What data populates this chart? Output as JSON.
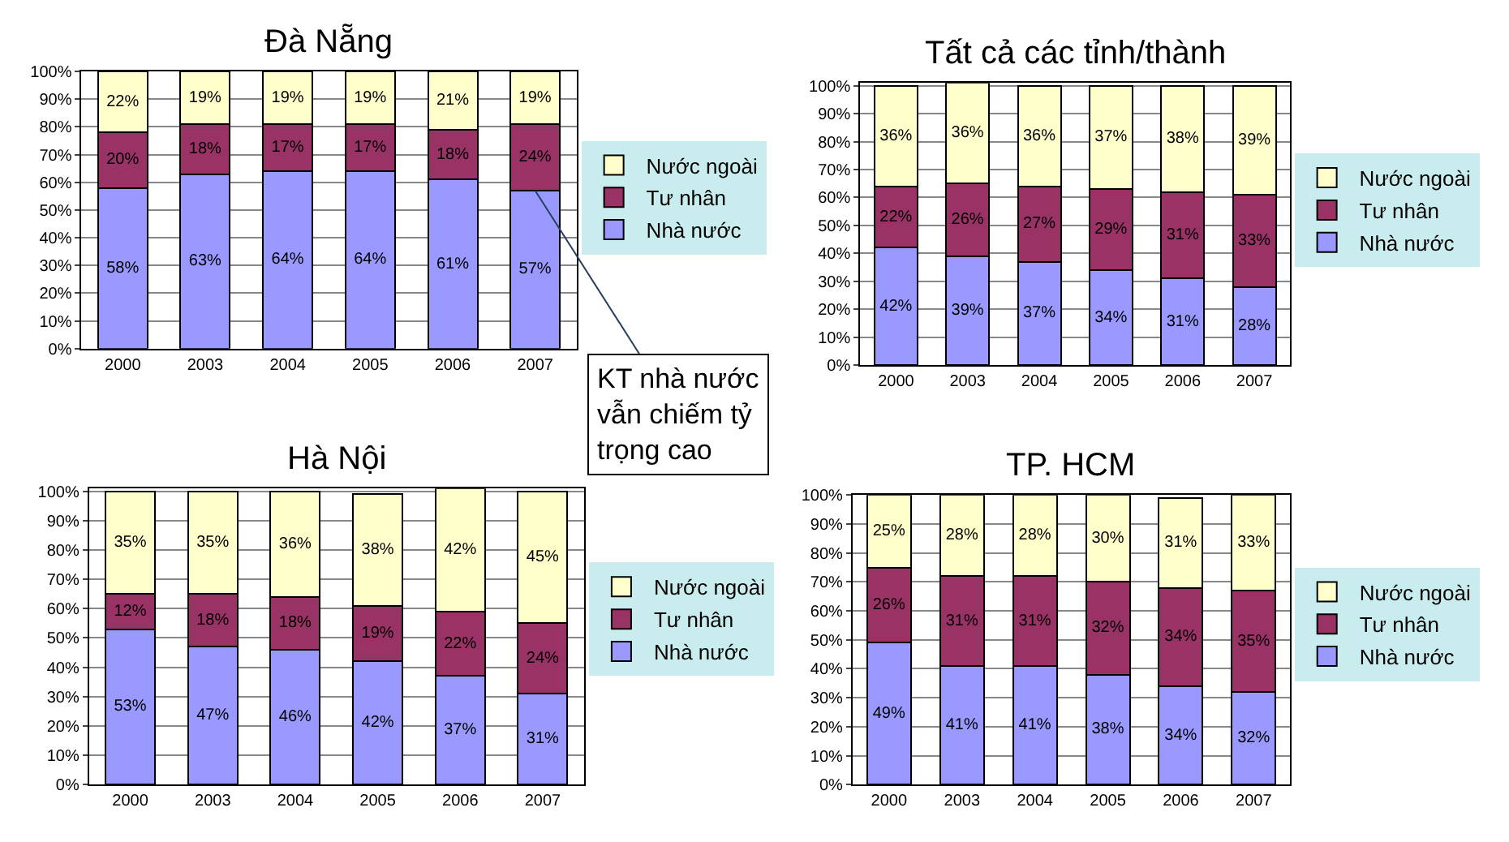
{
  "chart_data": [
    {
      "type": "bar",
      "title": "Đà Nẵng",
      "categories": [
        "2000",
        "2003",
        "2004",
        "2005",
        "2006",
        "2007"
      ],
      "stacked": true,
      "ylim": [
        0,
        100
      ],
      "yticks": [
        {
          "value": 0,
          "label": "0%"
        },
        {
          "value": 10,
          "label": "10%"
        },
        {
          "value": 20,
          "label": "20%"
        },
        {
          "value": 30,
          "label": "30%"
        },
        {
          "value": 40,
          "label": "40%"
        },
        {
          "value": 50,
          "label": "50%"
        },
        {
          "value": 60,
          "label": "60%"
        },
        {
          "value": 70,
          "label": "70%"
        },
        {
          "value": 80,
          "label": "80%"
        },
        {
          "value": 90,
          "label": "90%"
        },
        {
          "value": 100,
          "label": "100%"
        }
      ],
      "grid": "y",
      "legend": "right",
      "series": [
        {
          "name": "Nhà nước",
          "color": "#9999ff",
          "values": [
            58,
            63,
            64,
            64,
            61,
            57
          ],
          "value_labels": [
            "58%",
            "63%",
            "64%",
            "64%",
            "61%",
            "57%"
          ]
        },
        {
          "name": "Tư nhân",
          "color": "#993366",
          "values": [
            20,
            18,
            17,
            17,
            18,
            24
          ],
          "value_labels": [
            "20%",
            "18%",
            "17%",
            "17%",
            "18%",
            "24%"
          ]
        },
        {
          "name": "Nước ngoài",
          "color": "#ffffcc",
          "values": [
            22,
            19,
            19,
            19,
            21,
            19
          ],
          "value_labels": [
            "22%",
            "19%",
            "19%",
            "19%",
            "21%",
            "19%"
          ]
        }
      ],
      "annotations": [
        {
          "text": "KT nhà nước\nvẫn chiếm tỷ\ntrọng cao",
          "x": "2007",
          "y": 57
        }
      ]
    },
    {
      "type": "bar",
      "title": "Tất cả các tỉnh/thành",
      "categories": [
        "2000",
        "2003",
        "2004",
        "2005",
        "2006",
        "2007"
      ],
      "stacked": true,
      "ylim": [
        0,
        101
      ],
      "yticks": [
        {
          "value": 0,
          "label": "0%"
        },
        {
          "value": 10,
          "label": "10%"
        },
        {
          "value": 20,
          "label": "20%"
        },
        {
          "value": 30,
          "label": "30%"
        },
        {
          "value": 40,
          "label": "40%"
        },
        {
          "value": 50,
          "label": "50%"
        },
        {
          "value": 60,
          "label": "60%"
        },
        {
          "value": 70,
          "label": "70%"
        },
        {
          "value": 80,
          "label": "80%"
        },
        {
          "value": 90,
          "label": "90%"
        },
        {
          "value": 100,
          "label": "100%"
        }
      ],
      "grid": "y",
      "legend": "right",
      "series": [
        {
          "name": "Nhà nước",
          "color": "#9999ff",
          "values": [
            42,
            39,
            37,
            34,
            31,
            28
          ],
          "value_labels": [
            "42%",
            "39%",
            "37%",
            "34%",
            "31%",
            "28%"
          ]
        },
        {
          "name": "Tư nhân",
          "color": "#993366",
          "values": [
            22,
            26,
            27,
            29,
            31,
            33
          ],
          "value_labels": [
            "22%",
            "26%",
            "27%",
            "29%",
            "31%",
            "33%"
          ]
        },
        {
          "name": "Nước ngoài",
          "color": "#ffffcc",
          "values": [
            36,
            36,
            36,
            37,
            38,
            39
          ],
          "value_labels": [
            "36%",
            "36%",
            "36%",
            "37%",
            "38%",
            "39%"
          ]
        }
      ]
    },
    {
      "type": "bar",
      "title": "Hà Nội",
      "categories": [
        "2000",
        "2003",
        "2004",
        "2005",
        "2006",
        "2007"
      ],
      "stacked": true,
      "ylim": [
        0,
        101
      ],
      "yticks": [
        {
          "value": 0,
          "label": "0%"
        },
        {
          "value": 10,
          "label": "10%"
        },
        {
          "value": 20,
          "label": "20%"
        },
        {
          "value": 30,
          "label": "30%"
        },
        {
          "value": 40,
          "label": "40%"
        },
        {
          "value": 50,
          "label": "50%"
        },
        {
          "value": 60,
          "label": "60%"
        },
        {
          "value": 70,
          "label": "70%"
        },
        {
          "value": 80,
          "label": "80%"
        },
        {
          "value": 90,
          "label": "90%"
        },
        {
          "value": 100,
          "label": "100%"
        }
      ],
      "grid": "y",
      "legend": "right",
      "series": [
        {
          "name": "Nhà nước",
          "color": "#9999ff",
          "values": [
            53,
            47,
            46,
            42,
            37,
            31
          ],
          "value_labels": [
            "53%",
            "47%",
            "46%",
            "42%",
            "37%",
            "31%"
          ]
        },
        {
          "name": "Tư nhân",
          "color": "#993366",
          "values": [
            12,
            18,
            18,
            19,
            22,
            24
          ],
          "value_labels": [
            "12%",
            "18%",
            "18%",
            "19%",
            "22%",
            "24%"
          ]
        },
        {
          "name": "Nước ngoài",
          "color": "#ffffcc",
          "values": [
            35,
            35,
            36,
            38,
            42,
            45
          ],
          "value_labels": [
            "35%",
            "35%",
            "36%",
            "38%",
            "42%",
            "45%"
          ]
        }
      ]
    },
    {
      "type": "bar",
      "title": "TP. HCM",
      "categories": [
        "2000",
        "2003",
        "2004",
        "2005",
        "2006",
        "2007"
      ],
      "stacked": true,
      "ylim": [
        0,
        100
      ],
      "yticks": [
        {
          "value": 0,
          "label": "0%"
        },
        {
          "value": 10,
          "label": "10%"
        },
        {
          "value": 20,
          "label": "20%"
        },
        {
          "value": 30,
          "label": "30%"
        },
        {
          "value": 40,
          "label": "40%"
        },
        {
          "value": 50,
          "label": "50%"
        },
        {
          "value": 60,
          "label": "60%"
        },
        {
          "value": 70,
          "label": "70%"
        },
        {
          "value": 80,
          "label": "80%"
        },
        {
          "value": 90,
          "label": "90%"
        },
        {
          "value": 100,
          "label": "100%"
        }
      ],
      "grid": "y",
      "legend": "right",
      "series": [
        {
          "name": "Nhà nước",
          "color": "#9999ff",
          "values": [
            49,
            41,
            41,
            38,
            34,
            32
          ],
          "value_labels": [
            "49%",
            "41%",
            "41%",
            "38%",
            "34%",
            "32%"
          ]
        },
        {
          "name": "Tư nhân",
          "color": "#993366",
          "values": [
            26,
            31,
            31,
            32,
            34,
            35
          ],
          "value_labels": [
            "26%",
            "31%",
            "31%",
            "32%",
            "34%",
            "35%"
          ]
        },
        {
          "name": "Nước ngoài",
          "color": "#ffffcc",
          "values": [
            25,
            28,
            28,
            30,
            31,
            33
          ],
          "value_labels": [
            "25%",
            "28%",
            "28%",
            "30%",
            "31%",
            "33%"
          ]
        }
      ]
    }
  ]
}
